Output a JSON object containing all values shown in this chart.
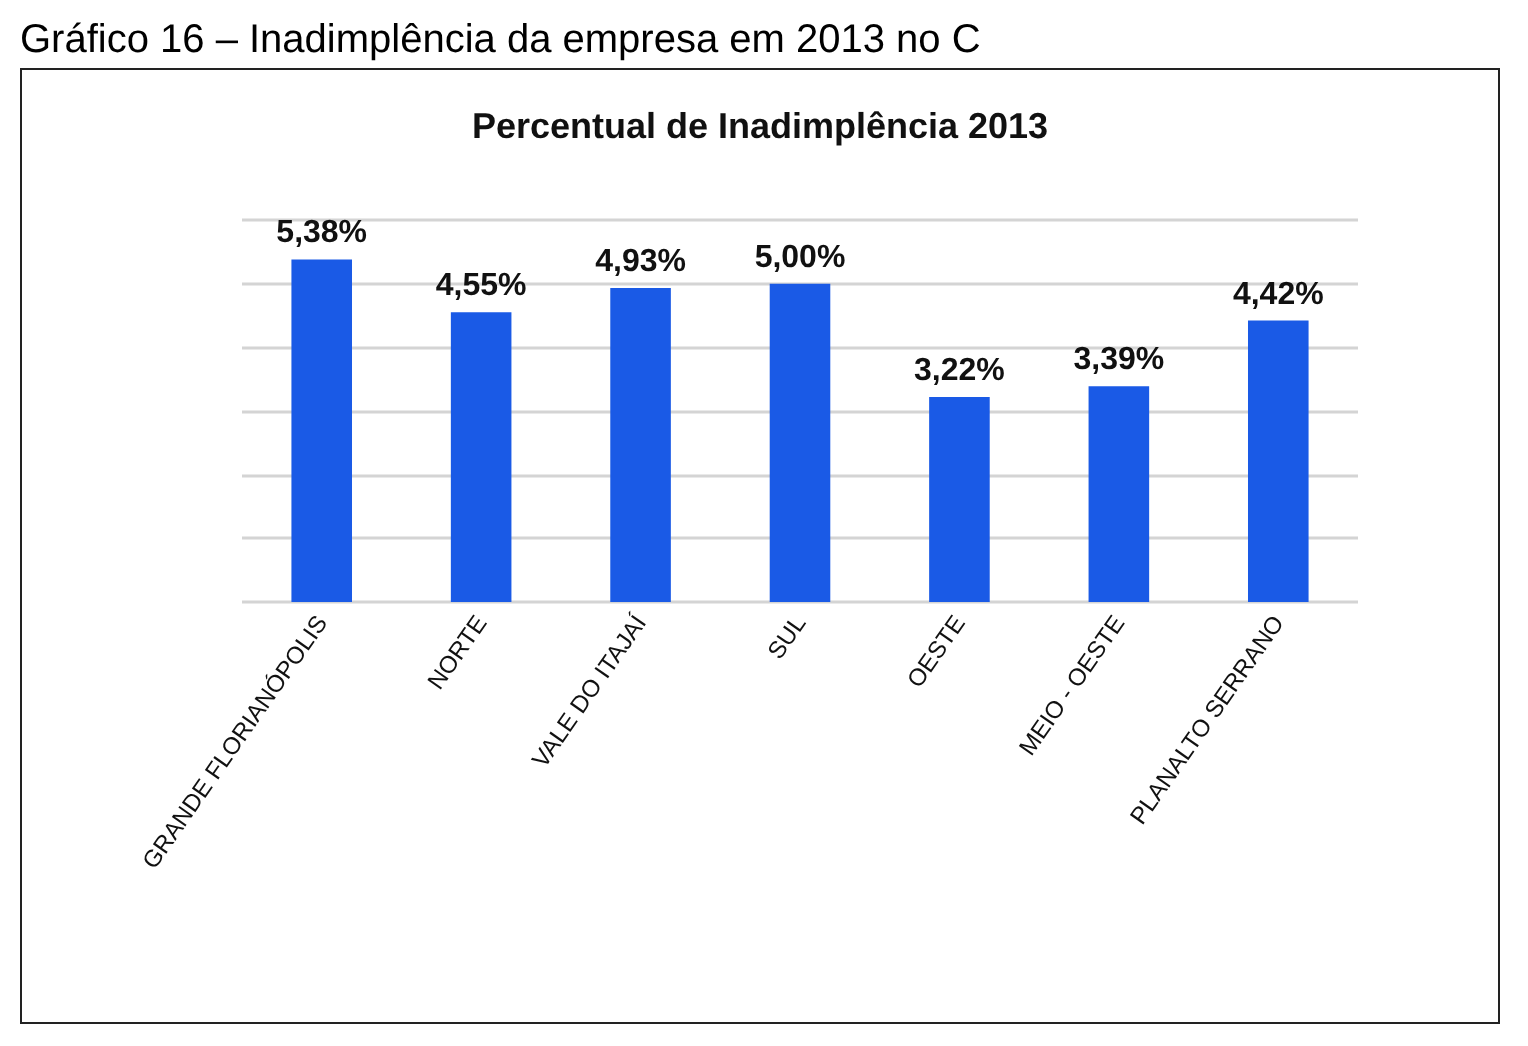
{
  "chart_data": {
    "type": "bar",
    "title": "Percentual de Inadimplência 2013",
    "annotations": [
      "Gráfico 16 – Inadimplência da empresa em 2013 no C"
    ],
    "categories": [
      "GRANDE FLORIANÓPOLIS",
      "NORTE",
      "VALE DO ITAJAÍ",
      "SUL",
      "OESTE",
      "MEIO - OESTE",
      "PLANALTO SERRANO"
    ],
    "values": [
      5.38,
      4.55,
      4.93,
      5.0,
      3.22,
      3.39,
      4.42
    ],
    "value_labels": [
      "5,38%",
      "4,55%",
      "4,93%",
      "5,00%",
      "3,22%",
      "3,39%",
      "4,42%"
    ],
    "color": "#1a5ae6",
    "ylim": [
      0,
      6
    ],
    "yticks": [
      {
        "value": 0,
        "label": null
      },
      {
        "value": 1,
        "label": null
      },
      {
        "value": 2,
        "label": null
      },
      {
        "value": 3,
        "label": null
      },
      {
        "value": 4,
        "label": null
      },
      {
        "value": 5,
        "label": null
      },
      {
        "value": 6,
        "label": null
      }
    ],
    "grid": true,
    "tick_labels": "x"
  }
}
